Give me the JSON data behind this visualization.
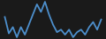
{
  "values": [
    28,
    15,
    20,
    12,
    20,
    14,
    22,
    30,
    38,
    32,
    40,
    30,
    22,
    16,
    18,
    14,
    18,
    12,
    16,
    18,
    14,
    20,
    24,
    18,
    26
  ],
  "line_color": "#4d8fcc",
  "background_color": "#1a1a1a",
  "linewidth": 1.3
}
